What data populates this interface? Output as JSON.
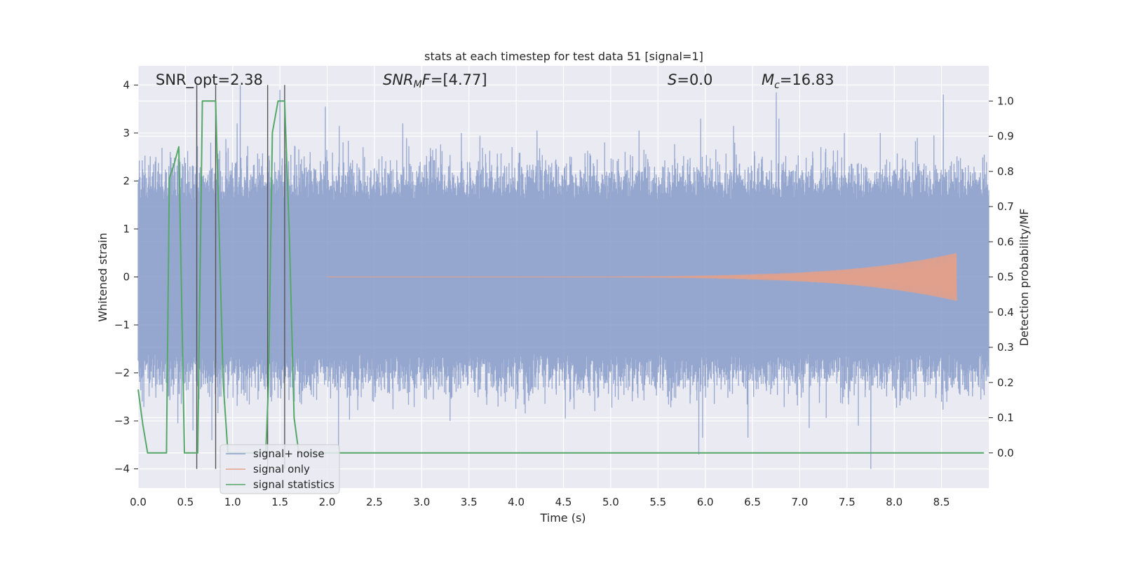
{
  "chart_data": {
    "type": "line",
    "title": "stats at each timestep for test data 51 [signal=1]",
    "xlabel": "Time (s)",
    "ylabel_left": "Whitened strain",
    "ylabel_right": "Detection probability/MF",
    "xlim": [
      0.0,
      9.0
    ],
    "ylim_left": [
      -4.4,
      4.4
    ],
    "ylim_right": [
      -0.1,
      1.1
    ],
    "x_ticks": [
      "0.0",
      "0.5",
      "1.0",
      "1.5",
      "2.0",
      "2.5",
      "3.0",
      "3.5",
      "4.0",
      "4.5",
      "5.0",
      "5.5",
      "6.0",
      "6.5",
      "7.0",
      "7.5",
      "8.0",
      "8.5"
    ],
    "y_ticks_left": [
      "−4",
      "−3",
      "−2",
      "−1",
      "0",
      "1",
      "2",
      "3",
      "4"
    ],
    "y_ticks_right": [
      "0.0",
      "0.1",
      "0.2",
      "0.3",
      "0.4",
      "0.5",
      "0.6",
      "0.7",
      "0.8",
      "0.9",
      "1.0"
    ],
    "grid": true,
    "legend_position": "lower-left",
    "annotations": {
      "snr_opt": "SNR_opt=2.38",
      "snr_mf": "[4.77]",
      "s_value": "=0.0",
      "mc_value": "=16.83"
    },
    "colors": {
      "noise": "#8da0cb",
      "signal": "#e3a08a",
      "stats": "#55a868",
      "background": "#eaeaf2",
      "vlines": "#555555"
    },
    "series": [
      {
        "name": "signal+ noise",
        "kind": "noise",
        "sample_rate_hz": 512,
        "typical_amplitude": 1.6,
        "noise_peaks_upper": [
          [
            0.55,
            2.3
          ],
          [
            0.62,
            4.0
          ],
          [
            1.05,
            3.2
          ],
          [
            1.08,
            4.0
          ],
          [
            1.5,
            3.9
          ],
          [
            1.98,
            3.55
          ],
          [
            2.13,
            3.15
          ],
          [
            2.8,
            3.2
          ],
          [
            3.42,
            3.0
          ],
          [
            4.22,
            3.05
          ],
          [
            5.3,
            3.05
          ],
          [
            5.95,
            3.3
          ],
          [
            6.3,
            3.15
          ],
          [
            6.75,
            3.85
          ],
          [
            6.78,
            3.3
          ],
          [
            7.47,
            3.0
          ],
          [
            7.85,
            3.0
          ],
          [
            8.42,
            2.95
          ],
          [
            8.52,
            3.8
          ],
          [
            8.95,
            2.55
          ]
        ],
        "noise_peaks_lower": [
          [
            0.42,
            -3.05
          ],
          [
            0.58,
            -3.2
          ],
          [
            0.78,
            -3.4
          ],
          [
            2.12,
            -3.6
          ],
          [
            3.3,
            -3.0
          ],
          [
            4.52,
            -2.95
          ],
          [
            5.93,
            -3.7
          ],
          [
            5.97,
            -3.35
          ],
          [
            6.45,
            -3.35
          ],
          [
            7.1,
            -3.15
          ],
          [
            7.62,
            -3.1
          ],
          [
            7.75,
            -4.0
          ],
          [
            8.5,
            -2.6
          ]
        ]
      },
      {
        "name": "signal only",
        "kind": "chirp",
        "x_start": 2.0,
        "x_end": 8.66,
        "peak_amplitude": 0.5
      },
      {
        "name": "signal statistics",
        "kind": "probability",
        "x": [
          0.0,
          0.05,
          0.1,
          0.18,
          0.3,
          0.33,
          0.38,
          0.43,
          0.49,
          0.55,
          0.6,
          0.63,
          0.68,
          0.72,
          0.8,
          0.82,
          0.9,
          0.95,
          1.35,
          1.38,
          1.42,
          1.48,
          1.55,
          1.6,
          1.65,
          1.7,
          1.75,
          1.8,
          8.95
        ],
        "y": [
          0.18,
          0.08,
          0.0,
          0.0,
          0.0,
          0.78,
          0.82,
          0.87,
          0.0,
          0.0,
          0.0,
          0.0,
          1.0,
          1.0,
          1.0,
          1.0,
          0.2,
          0.0,
          0.0,
          0.2,
          0.91,
          1.0,
          1.0,
          0.62,
          0.1,
          0.0,
          0.0,
          0.0,
          0.0
        ]
      }
    ],
    "vertical_lines": [
      0.62,
      0.82,
      1.37,
      1.55
    ]
  }
}
